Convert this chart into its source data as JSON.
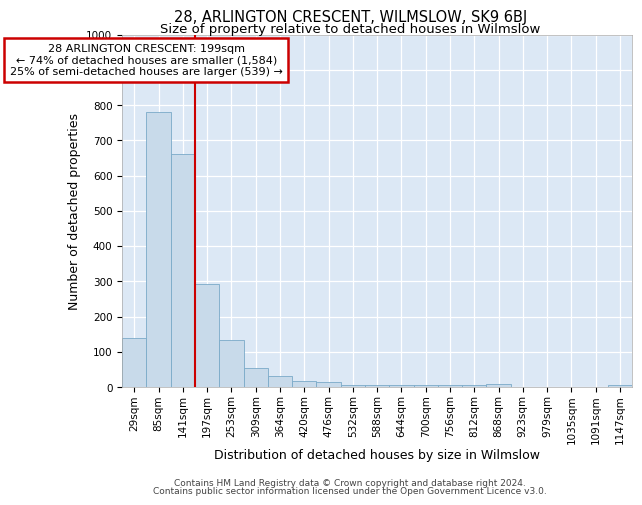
{
  "title": "28, ARLINGTON CRESCENT, WILMSLOW, SK9 6BJ",
  "subtitle": "Size of property relative to detached houses in Wilmslow",
  "xlabel": "Distribution of detached houses by size in Wilmslow",
  "ylabel": "Number of detached properties",
  "categories": [
    "29sqm",
    "85sqm",
    "141sqm",
    "197sqm",
    "253sqm",
    "309sqm",
    "364sqm",
    "420sqm",
    "476sqm",
    "532sqm",
    "588sqm",
    "644sqm",
    "700sqm",
    "756sqm",
    "812sqm",
    "868sqm",
    "923sqm",
    "979sqm",
    "1035sqm",
    "1091sqm",
    "1147sqm"
  ],
  "values": [
    140,
    780,
    660,
    293,
    133,
    55,
    30,
    17,
    13,
    5,
    5,
    5,
    5,
    5,
    5,
    8,
    0,
    0,
    0,
    0,
    5
  ],
  "bar_color": "#c8daea",
  "bar_edge_color": "#7aaac8",
  "red_line_index": 3,
  "annotation_line1": "28 ARLINGTON CRESCENT: 199sqm",
  "annotation_line2": "← 74% of detached houses are smaller (1,584)",
  "annotation_line3": "25% of semi-detached houses are larger (539) →",
  "annotation_box_color": "#cc0000",
  "ylim": [
    0,
    1000
  ],
  "yticks": [
    0,
    100,
    200,
    300,
    400,
    500,
    600,
    700,
    800,
    900,
    1000
  ],
  "footer_line1": "Contains HM Land Registry data © Crown copyright and database right 2024.",
  "footer_line2": "Contains public sector information licensed under the Open Government Licence v3.0.",
  "bg_color": "#dce8f5",
  "grid_color": "#c0d0e0",
  "title_fontsize": 10.5,
  "subtitle_fontsize": 9.5,
  "axis_label_fontsize": 9,
  "tick_fontsize": 7.5,
  "annotation_fontsize": 8,
  "footer_fontsize": 6.5
}
